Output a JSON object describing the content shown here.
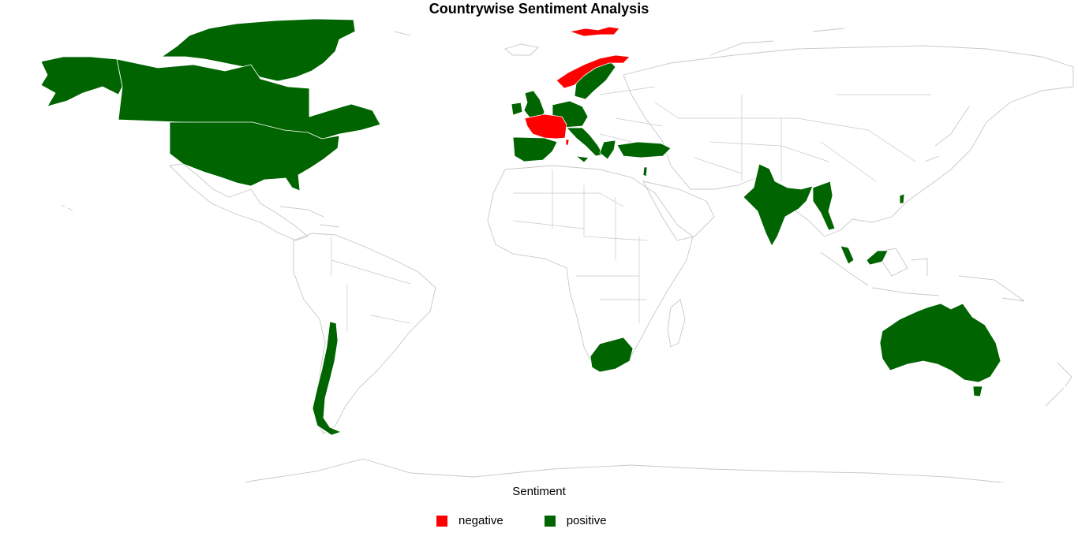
{
  "title": "Countrywise Sentiment Analysis",
  "legend": {
    "title": "Sentiment",
    "items": [
      {
        "label": "negative",
        "color": "#ff0000"
      },
      {
        "label": "positive",
        "color": "#006400"
      }
    ]
  },
  "regions": [
    {
      "name": "Greenland",
      "sentiment": "positive"
    },
    {
      "name": "Canada",
      "sentiment": "positive"
    },
    {
      "name": "Alaska",
      "sentiment": "positive"
    },
    {
      "name": "United States",
      "sentiment": "positive"
    },
    {
      "name": "United Kingdom",
      "sentiment": "positive"
    },
    {
      "name": "Ireland",
      "sentiment": "positive"
    },
    {
      "name": "Spain",
      "sentiment": "positive"
    },
    {
      "name": "Germany",
      "sentiment": "positive"
    },
    {
      "name": "Italy",
      "sentiment": "positive"
    },
    {
      "name": "Sweden",
      "sentiment": "positive"
    },
    {
      "name": "Greece",
      "sentiment": "positive"
    },
    {
      "name": "Turkey",
      "sentiment": "positive"
    },
    {
      "name": "Israel",
      "sentiment": "positive"
    },
    {
      "name": "India",
      "sentiment": "positive"
    },
    {
      "name": "Myanmar",
      "sentiment": "positive"
    },
    {
      "name": "Malaysia",
      "sentiment": "positive"
    },
    {
      "name": "South Korea",
      "sentiment": "positive"
    },
    {
      "name": "Australia",
      "sentiment": "positive"
    },
    {
      "name": "Tasmania",
      "sentiment": "positive"
    },
    {
      "name": "South Africa",
      "sentiment": "positive"
    },
    {
      "name": "Chile",
      "sentiment": "positive"
    },
    {
      "name": "France",
      "sentiment": "negative"
    },
    {
      "name": "Norway",
      "sentiment": "negative"
    },
    {
      "name": "Svalbard",
      "sentiment": "negative"
    },
    {
      "name": "Corsica",
      "sentiment": "negative"
    }
  ]
}
